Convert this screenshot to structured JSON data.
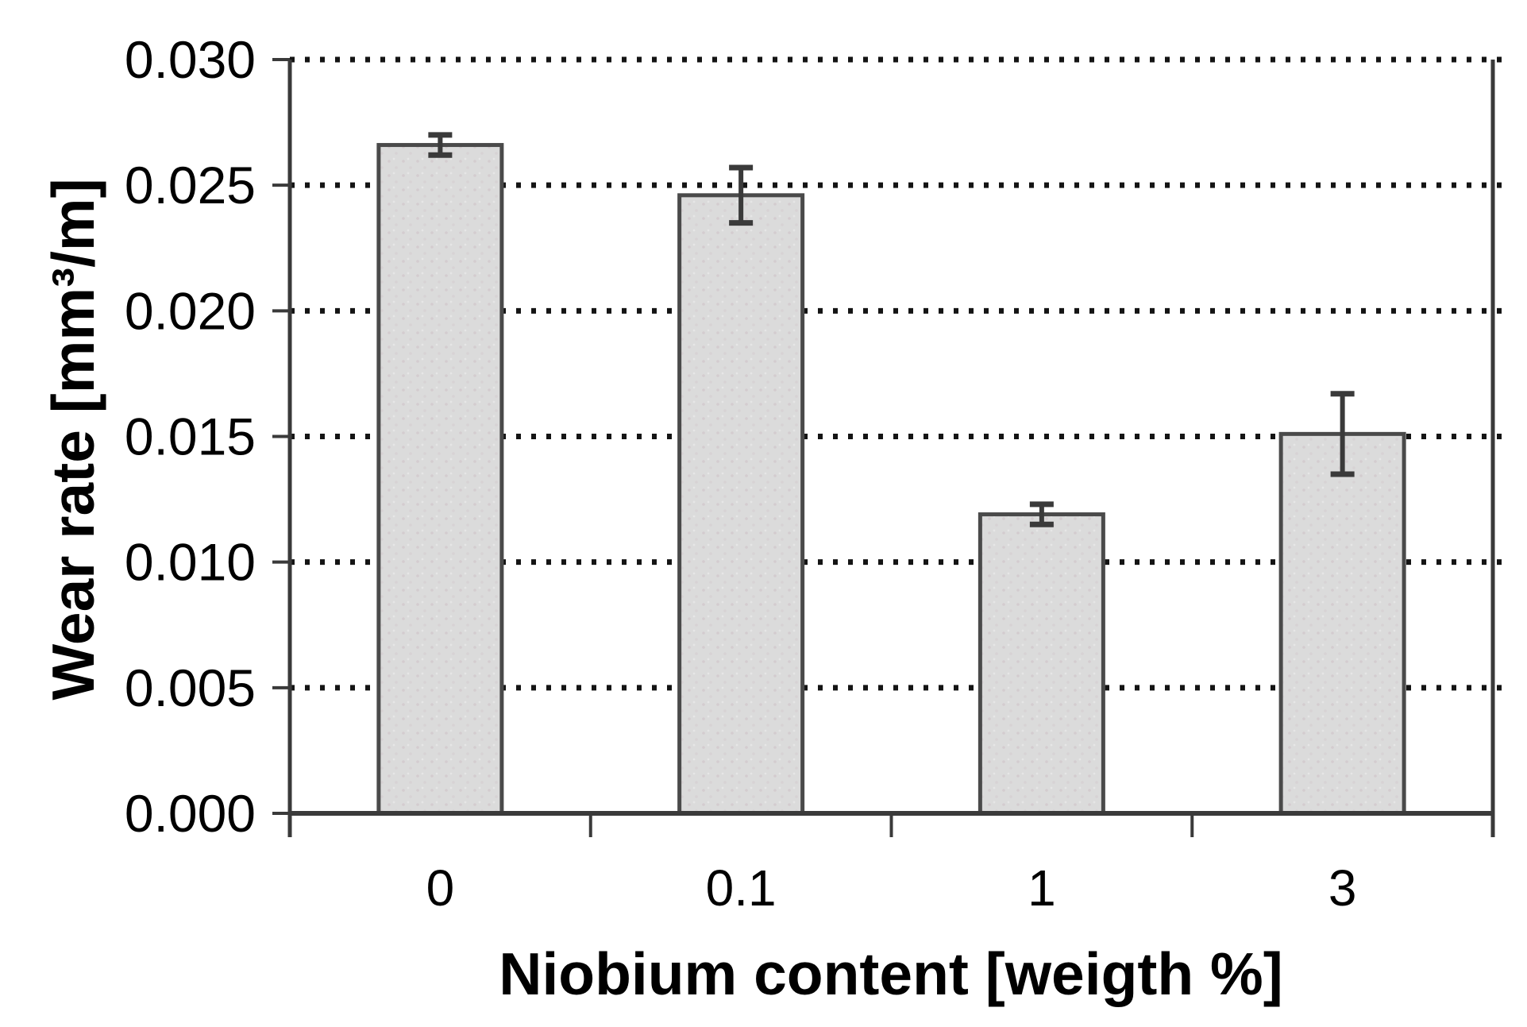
{
  "figure": {
    "background": "#ffffff"
  },
  "chart_data": {
    "type": "bar",
    "title": "",
    "xlabel": "Niobium content [weigth %]",
    "ylabel": "Wear rate [mm³/m]",
    "categories": [
      "0",
      "0.1",
      "1",
      "3"
    ],
    "values": [
      0.0266,
      0.0246,
      0.0119,
      0.0151
    ],
    "errors": [
      0.0004,
      0.0011,
      0.0004,
      0.0016
    ],
    "ylim": [
      0,
      0.03
    ],
    "ytick_step": 0.005,
    "ytick_labels": [
      "0.000",
      "0.005",
      "0.010",
      "0.015",
      "0.020",
      "0.025",
      "0.030"
    ],
    "grid": "horizontal-dotted",
    "legend": "none",
    "colors": {
      "bar_fill": "#dbdbdb",
      "bar_speckle": "#cfc5ca",
      "bar_border": "#4a4a4a",
      "error_bar": "#3a3a3a",
      "axis": "#3a3a3a",
      "gridline": "#141414",
      "text": "#000000",
      "background": "#ffffff"
    }
  }
}
